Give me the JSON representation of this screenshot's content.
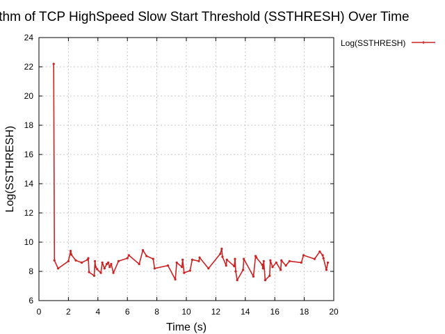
{
  "chart_data": {
    "type": "line",
    "title": "Logarithm of TCP HighSpeed Slow Start Threshold (SSTHRESH) Over Time",
    "xlabel": "Time (s)",
    "ylabel": "Log(SSTHRESH)",
    "xlim": [
      0,
      20
    ],
    "ylim": [
      6,
      24
    ],
    "xticks": [
      "0",
      "2",
      "4",
      "6",
      "8",
      "10",
      "12",
      "14",
      "16",
      "18",
      "20"
    ],
    "yticks": [
      "6",
      "8",
      "10",
      "12",
      "14",
      "16",
      "18",
      "20",
      "22",
      "24"
    ],
    "grid": true,
    "legend_position": "outside-top-right",
    "series": [
      {
        "name": "Log(SSTHRESH)",
        "color": "#cc2222",
        "x": [
          1.0,
          1.05,
          1.3,
          2.0,
          2.15,
          2.2,
          2.5,
          2.9,
          3.3,
          3.35,
          3.4,
          3.75,
          3.8,
          3.85,
          3.95,
          4.2,
          4.3,
          4.45,
          4.6,
          4.7,
          4.8,
          4.9,
          5.05,
          5.4,
          6.0,
          6.1,
          6.8,
          7.05,
          7.3,
          7.75,
          7.85,
          8.75,
          9.25,
          9.35,
          9.7,
          9.75,
          9.85,
          10.25,
          10.4,
          10.85,
          10.9,
          11.5,
          12.3,
          12.4,
          12.45,
          12.7,
          12.75,
          13.25,
          13.3,
          13.35,
          13.45,
          13.85,
          13.9,
          14.55,
          14.7,
          14.75,
          15.15,
          15.2,
          15.25,
          15.35,
          15.65,
          15.7,
          15.85,
          16.1,
          16.4,
          16.45,
          16.75,
          17.0,
          17.8,
          17.95,
          18.7,
          19.05,
          19.25,
          19.3,
          19.5,
          19.6
        ],
        "y": [
          22.2,
          8.75,
          8.2,
          8.7,
          9.4,
          9.15,
          8.75,
          8.6,
          8.8,
          8.9,
          7.95,
          7.7,
          8.7,
          8.3,
          8.15,
          7.9,
          8.6,
          8.2,
          8.5,
          8.6,
          8.3,
          8.5,
          7.9,
          8.7,
          8.9,
          9.1,
          8.5,
          9.45,
          9.05,
          8.85,
          8.2,
          8.4,
          7.45,
          8.6,
          8.3,
          8.8,
          7.9,
          8.05,
          8.8,
          8.7,
          8.95,
          8.2,
          9.2,
          9.55,
          9.0,
          8.4,
          8.8,
          8.35,
          8.85,
          8.0,
          7.4,
          8.1,
          8.85,
          7.65,
          9.05,
          8.95,
          8.45,
          8.2,
          8.7,
          7.4,
          7.7,
          8.75,
          8.3,
          8.6,
          8.1,
          8.75,
          8.4,
          8.7,
          8.6,
          9.1,
          8.85,
          9.35,
          9.1,
          8.9,
          8.1,
          8.6
        ]
      }
    ]
  }
}
